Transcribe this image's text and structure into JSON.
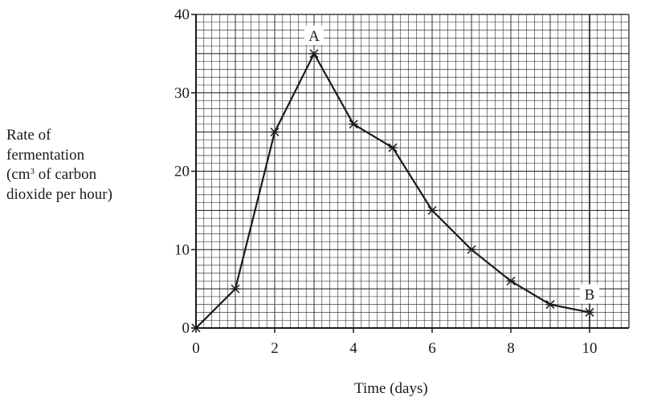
{
  "chart_data": {
    "type": "line",
    "x": [
      0,
      1,
      2,
      3,
      4,
      5,
      6,
      7,
      8,
      9,
      10
    ],
    "series": [
      {
        "values": [
          0,
          5,
          25,
          35,
          26,
          23,
          15,
          10,
          6,
          3,
          2
        ]
      }
    ],
    "xlabel": "Time (days)",
    "ylabel": {
      "line1": "Rate of",
      "line2": "fermentation",
      "line3_pre": "(cm",
      "line3_sup": "3",
      "line3_post": " of carbon",
      "line4": "dioxide per hour)"
    },
    "xlim": [
      0,
      11
    ],
    "ylim": [
      0,
      40
    ],
    "x_ticks": [
      0,
      2,
      4,
      6,
      8,
      10
    ],
    "y_ticks": [
      0,
      10,
      20,
      30,
      40
    ],
    "x_tick_labels": [
      "0",
      "2",
      "4",
      "6",
      "8",
      "10"
    ],
    "y_tick_labels": [
      "0",
      "10",
      "20",
      "30",
      "40"
    ],
    "grid": true,
    "marker": "star",
    "annotations": [
      {
        "text": "A",
        "x": 3,
        "y": 35
      },
      {
        "text": "B",
        "x": 10,
        "y": 2
      }
    ],
    "reference_line_x": 10,
    "colors": {
      "line": "#1a1a1a",
      "grid": "#1a1a1a",
      "background": "#ffffff"
    }
  }
}
